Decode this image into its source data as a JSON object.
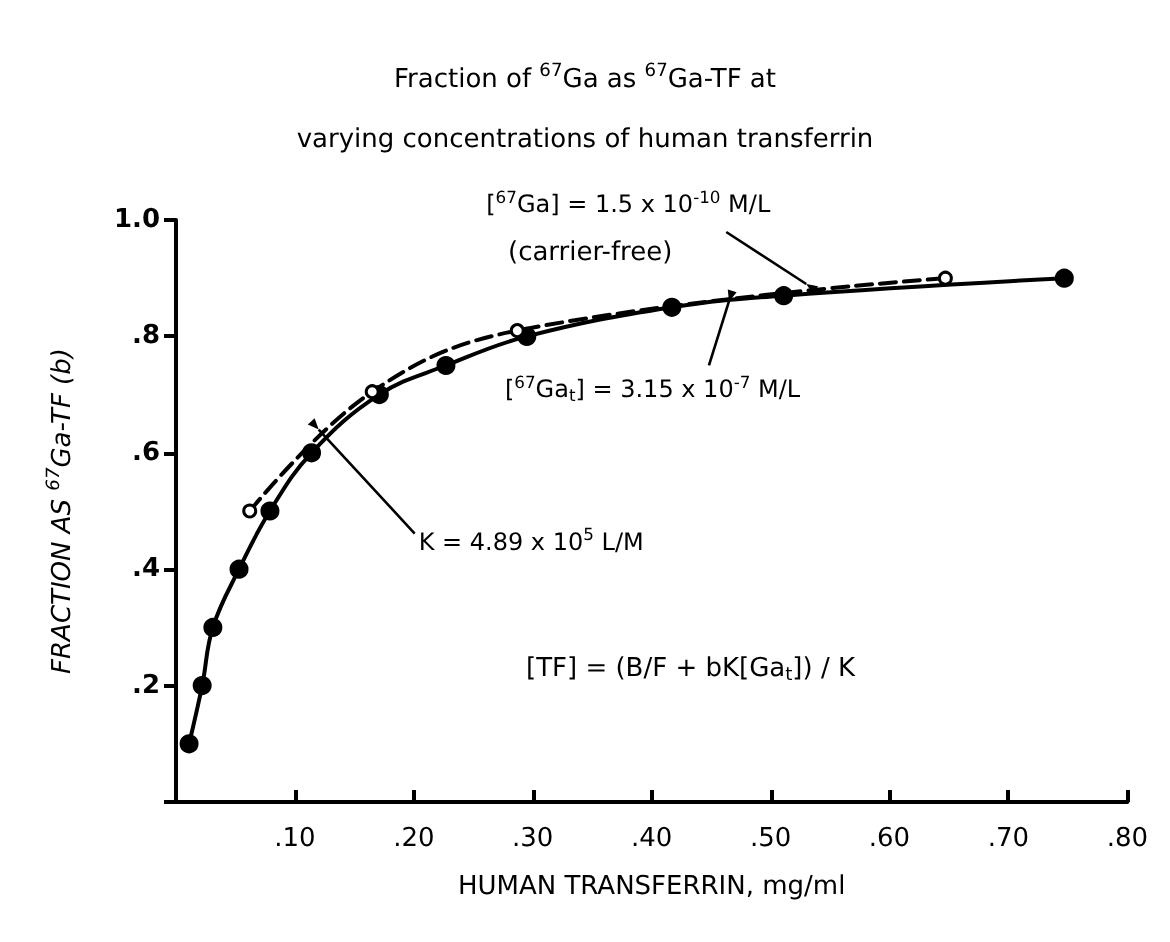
{
  "chart_data": {
    "type": "line",
    "title": "Fraction of $^{67}$Ga as $^{67}$Ga-TF at\nvarying concentrations of human transferrin",
    "xlabel": "HUMAN TRANSFERRIN, mg/ml",
    "ylabel": "FRACTION AS $^{67}$Ga-TF (b)",
    "xlim": [
      0,
      0.8
    ],
    "xticks": [
      {
        "value": 0,
        "label": null
      },
      {
        "value": 0.1,
        "label": ".10"
      },
      {
        "value": 0.2,
        "label": ".20"
      },
      {
        "value": 0.3,
        "label": ".30"
      },
      {
        "value": 0.4,
        "label": ".40"
      },
      {
        "value": 0.5,
        "label": ".50"
      },
      {
        "value": 0.6,
        "label": ".60"
      },
      {
        "value": 0.7,
        "label": ".70"
      },
      {
        "value": 0.8,
        "label": ".80"
      }
    ],
    "ylim": [
      0,
      1.0
    ],
    "yticks": [
      {
        "value": 0,
        "label": null
      },
      {
        "value": 0.2,
        "label": ".2"
      },
      {
        "value": 0.4,
        "label": ".4"
      },
      {
        "value": 0.6,
        "label": ".6"
      },
      {
        "value": 0.8,
        "label": ".8"
      },
      {
        "value": 1.0,
        "label": "1.0"
      }
    ],
    "grid": false,
    "marker": "circle",
    "series": [
      {
        "color": "#000000",
        "line_style": "solid",
        "x": [
          0.011,
          0.022,
          0.031,
          0.053,
          0.079,
          0.114,
          0.171,
          0.227,
          0.295,
          0.417,
          0.511,
          0.747
        ],
        "values": [
          0.1,
          0.2,
          0.3,
          0.4,
          0.5,
          0.6,
          0.7,
          0.75,
          0.8,
          0.85,
          0.87,
          0.9
        ]
      },
      {
        "color": "#000000",
        "line_style": "dashed",
        "x": [
          0.062,
          0.165,
          0.287,
          0.647
        ],
        "values": [
          0.5,
          0.705,
          0.81,
          0.9
        ]
      }
    ],
    "annotations": [
      {
        "text": "K = 4.89 x 10$^{5}$ L/M",
        "x": 0.12,
        "y": 0.64
      },
      {
        "text": "[$^{67}$Ga] = 1.5 x 10$^{-10}$ M/L",
        "x": 0.53,
        "y": 0.89
      },
      "(carrier-free)",
      {
        "text": "[$^{67}$Ga$_{t}$] = 3.15 x 10$^{-7}$ M/L",
        "x": 0.465,
        "y": 0.86
      },
      "[TF] = (B/F + bK[Ga$_{t}$]) / K"
    ]
  }
}
